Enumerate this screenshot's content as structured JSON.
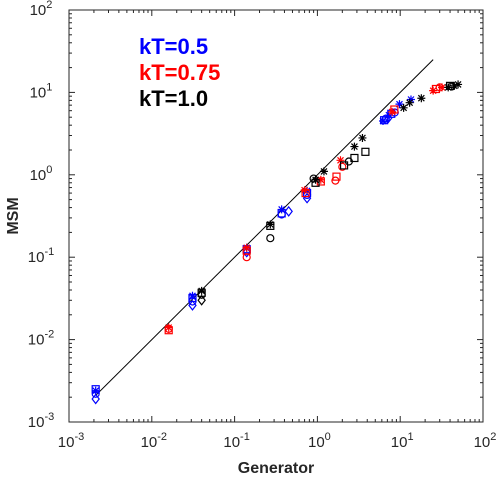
{
  "chart_data": {
    "type": "scatter",
    "xscale": "log",
    "yscale": "log",
    "xlim": [
      0.001,
      100
    ],
    "ylim": [
      0.001,
      100
    ],
    "xlabel": "Generator",
    "ylabel": "MSM",
    "grid": false,
    "legend_position": "top-left",
    "x_ticks": [
      {
        "value": 0.001,
        "base": "10",
        "exp": "-3"
      },
      {
        "value": 0.01,
        "base": "10",
        "exp": "-2"
      },
      {
        "value": 0.1,
        "base": "10",
        "exp": "-1"
      },
      {
        "value": 1,
        "base": "10",
        "exp": "0"
      },
      {
        "value": 10,
        "base": "10",
        "exp": "1"
      },
      {
        "value": 100,
        "base": "10",
        "exp": "2"
      }
    ],
    "y_ticks": [
      {
        "value": 0.001,
        "base": "10",
        "exp": "-3"
      },
      {
        "value": 0.01,
        "base": "10",
        "exp": "-2"
      },
      {
        "value": 0.1,
        "base": "10",
        "exp": "-1"
      },
      {
        "value": 1,
        "base": "10",
        "exp": "0"
      },
      {
        "value": 10,
        "base": "10",
        "exp": "1"
      },
      {
        "value": 100,
        "base": "10",
        "exp": "2"
      }
    ],
    "reference_line": {
      "x": [
        0.0021,
        25
      ],
      "y": [
        0.0021,
        25
      ]
    },
    "series": [
      {
        "name": "kT=0.5",
        "color": "#0000ff",
        "groups": [
          {
            "marker": "star",
            "points": [
              [
                0.0021,
                0.0024
              ],
              [
                0.031,
                0.034
              ],
              [
                0.14,
                0.13
              ],
              [
                0.37,
                0.38
              ],
              [
                0.75,
                0.64
              ],
              [
                6.2,
                4.5
              ],
              [
                7.3,
                5.3
              ],
              [
                9.8,
                7.2
              ],
              [
                13.5,
                8.2
              ]
            ]
          },
          {
            "marker": "square",
            "points": [
              [
                0.0021,
                0.0025
              ],
              [
                0.031,
                0.032
              ],
              [
                0.14,
                0.125
              ],
              [
                0.37,
                0.34
              ],
              [
                0.75,
                0.6
              ],
              [
                6.4,
                4.6
              ],
              [
                7.8,
                5.5
              ]
            ]
          },
          {
            "marker": "circle",
            "points": [
              [
                0.0021,
                0.0022
              ],
              [
                0.031,
                0.029
              ],
              [
                0.14,
                0.12
              ],
              [
                0.37,
                0.33
              ],
              [
                0.75,
                0.57
              ],
              [
                6.7,
                4.8
              ],
              [
                8.6,
                5.7
              ]
            ]
          },
          {
            "marker": "diamond",
            "points": [
              [
                0.0021,
                0.0019
              ],
              [
                0.031,
                0.026
              ],
              [
                0.14,
                0.115
              ],
              [
                0.45,
                0.36
              ],
              [
                0.75,
                0.52
              ],
              [
                7.2,
                4.9
              ]
            ]
          }
        ]
      },
      {
        "name": "kT=0.75",
        "color": "#ff0000",
        "groups": [
          {
            "marker": "star",
            "points": [
              [
                0.016,
                0.014
              ],
              [
                0.14,
                0.13
              ],
              [
                0.7,
                0.65
              ],
              [
                1.1,
                0.87
              ],
              [
                1.9,
                1.5
              ],
              [
                8.0,
                5.8
              ],
              [
                25,
                10.5
              ],
              [
                32,
                11.5
              ]
            ]
          },
          {
            "marker": "square",
            "points": [
              [
                0.016,
                0.013
              ],
              [
                0.14,
                0.12
              ],
              [
                0.72,
                0.6
              ],
              [
                1.1,
                0.83
              ],
              [
                1.7,
                0.95
              ],
              [
                8.5,
                6.2
              ],
              [
                27,
                11
              ]
            ]
          },
          {
            "marker": "circle",
            "points": [
              [
                0.016,
                0.0135
              ],
              [
                0.14,
                0.1
              ],
              [
                1.65,
                0.85
              ],
              [
                2.0,
                1.25
              ],
              [
                30,
                11.5
              ]
            ]
          }
        ]
      },
      {
        "name": "kT=1.0",
        "color": "#000000",
        "groups": [
          {
            "marker": "star",
            "points": [
              [
                0.04,
                0.039
              ],
              [
                0.27,
                0.25
              ],
              [
                0.95,
                0.87
              ],
              [
                1.2,
                1.1
              ],
              [
                2.8,
                2.2
              ],
              [
                3.5,
                2.8
              ],
              [
                11,
                6.5
              ],
              [
                13,
                7.5
              ],
              [
                18,
                8.5
              ],
              [
                38,
                11.5
              ],
              [
                45,
                12
              ],
              [
                50,
                12.5
              ]
            ]
          },
          {
            "marker": "square",
            "points": [
              [
                0.04,
                0.037
              ],
              [
                0.27,
                0.24
              ],
              [
                0.95,
                0.8
              ],
              [
                2.1,
                1.3
              ],
              [
                2.8,
                1.6
              ],
              [
                3.8,
                1.9
              ],
              [
                40,
                12
              ]
            ]
          },
          {
            "marker": "circle",
            "points": [
              [
                0.04,
                0.035
              ],
              [
                0.27,
                0.17
              ],
              [
                0.9,
                0.9
              ],
              [
                2.4,
                1.45
              ],
              [
                42,
                11.8
              ]
            ]
          },
          {
            "marker": "diamond",
            "points": [
              [
                0.04,
                0.03
              ]
            ]
          }
        ]
      }
    ]
  }
}
